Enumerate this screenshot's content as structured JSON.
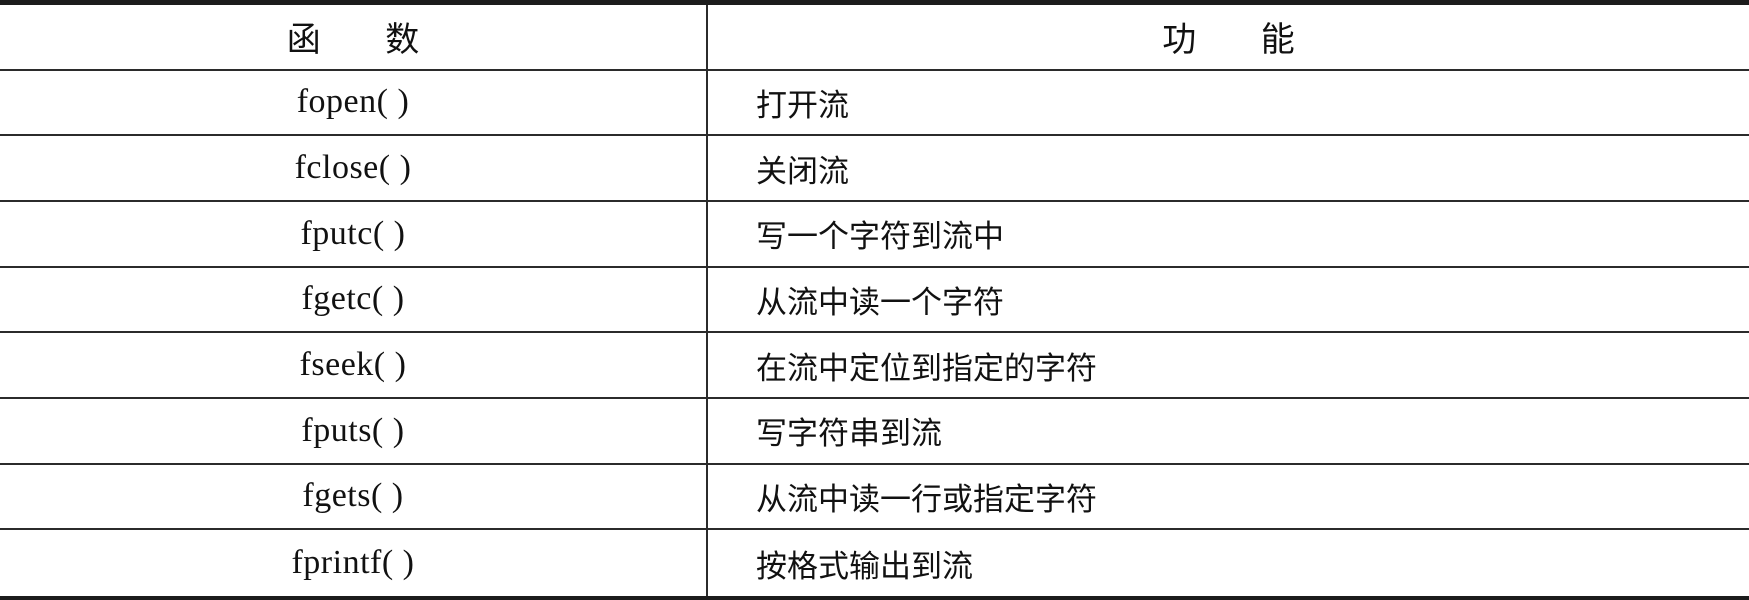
{
  "table": {
    "header": {
      "function_col": "函数",
      "purpose_col": "功能"
    },
    "rows": [
      {
        "func": "fopen( )",
        "desc": "打开流"
      },
      {
        "func": "fclose( )",
        "desc": "关闭流"
      },
      {
        "func": "fputc( )",
        "desc": "写一个字符到流中"
      },
      {
        "func": "fgetc( )",
        "desc": "从流中读一个字符"
      },
      {
        "func": "fseek( )",
        "desc": "在流中定位到指定的字符"
      },
      {
        "func": "fputs( )",
        "desc": "写字符串到流"
      },
      {
        "func": "fgets( )",
        "desc": "从流中读一行或指定字符"
      },
      {
        "func": "fprintf( )",
        "desc": "按格式输出到流"
      }
    ],
    "colors": {
      "rule": "#2b2b2b",
      "heavy_rule": "#1c1c1c",
      "text": "#111111",
      "background": "#ffffff"
    }
  }
}
